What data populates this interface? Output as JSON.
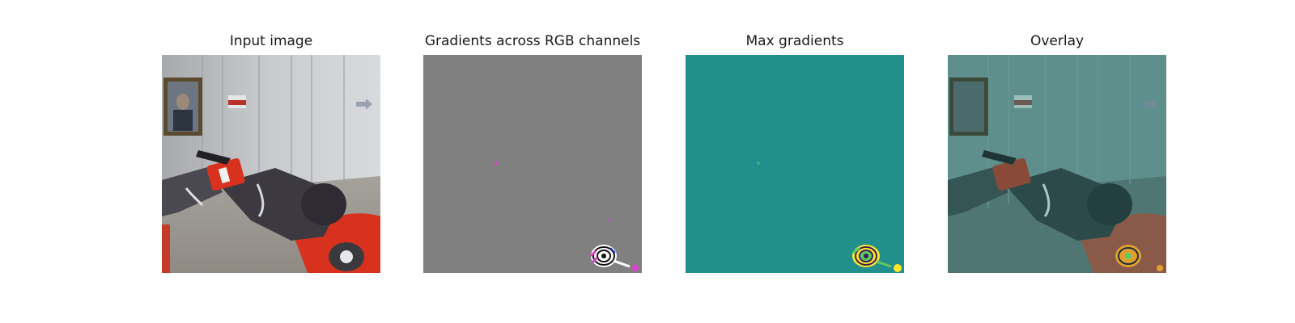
{
  "figure": {
    "panels": [
      {
        "id": "input",
        "title": "Input image"
      },
      {
        "id": "gradients",
        "title": "Gradients across RGB channels"
      },
      {
        "id": "max",
        "title": "Max gradients"
      },
      {
        "id": "overlay",
        "title": "Overlay"
      }
    ]
  },
  "colors": {
    "gradient_background": "#808080",
    "max_background": "#21908d",
    "overlay_tint": "#2a8f8a",
    "robot_red": "#d8321e",
    "robot_dark": "#3c3a40",
    "viridis_yellow": "#fde725",
    "viridis_green": "#5ec962",
    "magenta_highlight": "#e040d0"
  }
}
